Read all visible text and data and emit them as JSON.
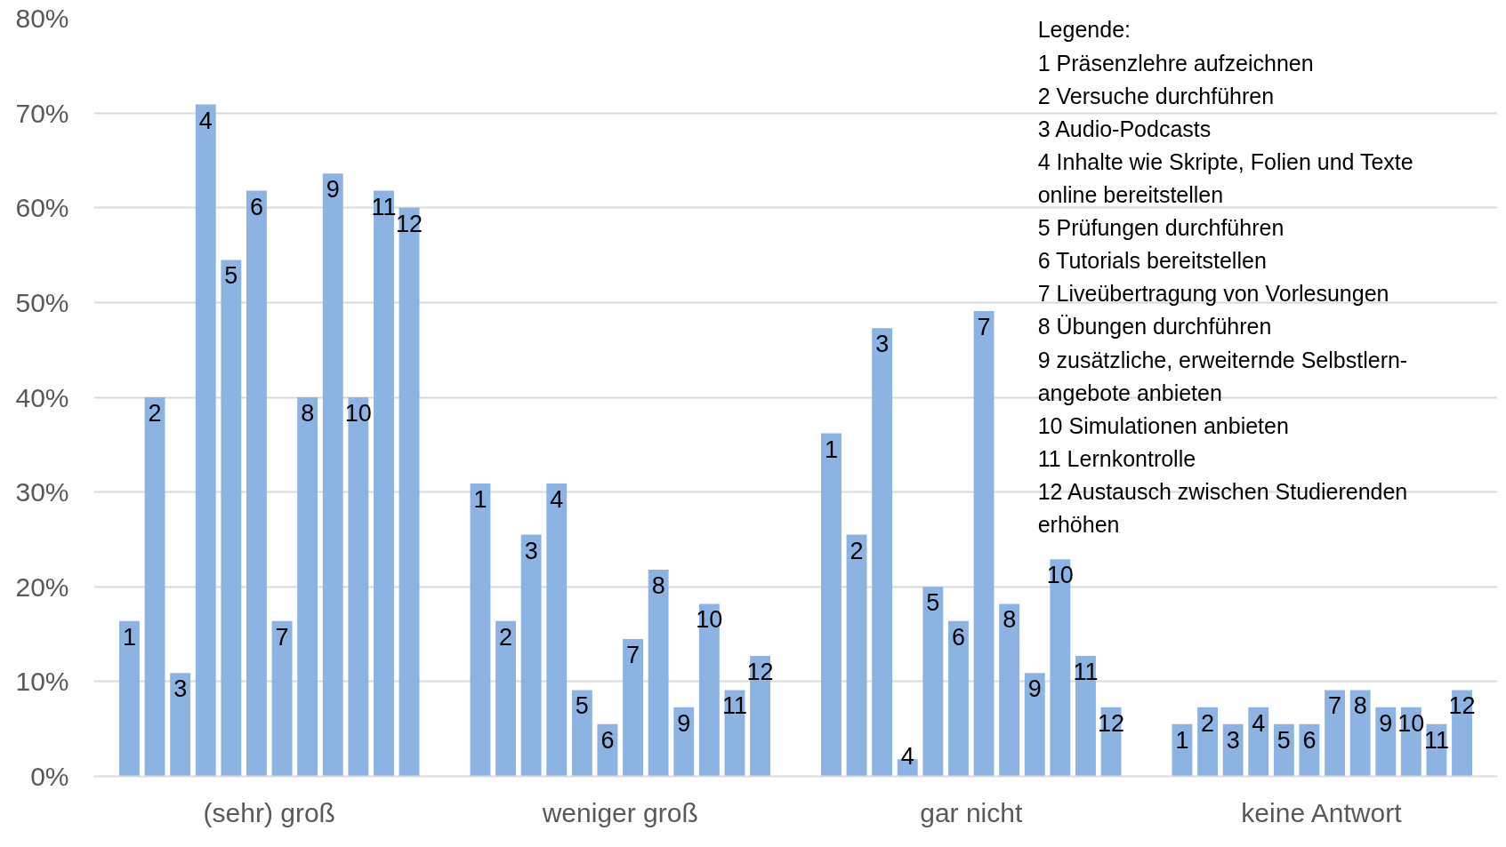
{
  "chart_data": {
    "type": "bar",
    "categories": [
      "(sehr) groß",
      "weniger groß",
      "gar nicht",
      "keine Antwort"
    ],
    "series": [
      {
        "name": "1",
        "color": "#8db3e2",
        "values": [
          16.4,
          30.9,
          36.2,
          5.5
        ]
      },
      {
        "name": "2",
        "color": "#8db3e2",
        "values": [
          40.0,
          16.4,
          25.5,
          7.3
        ]
      },
      {
        "name": "3",
        "color": "#8db3e2",
        "values": [
          10.9,
          25.5,
          47.3,
          5.5
        ]
      },
      {
        "name": "4",
        "color": "#8db3e2",
        "values": [
          70.9,
          30.9,
          1.8,
          7.3
        ]
      },
      {
        "name": "5",
        "color": "#8db3e2",
        "values": [
          54.5,
          9.1,
          20.0,
          5.5
        ]
      },
      {
        "name": "6",
        "color": "#8db3e2",
        "values": [
          61.8,
          5.5,
          16.4,
          5.5
        ]
      },
      {
        "name": "7",
        "color": "#8db3e2",
        "values": [
          16.4,
          14.5,
          49.1,
          9.1
        ]
      },
      {
        "name": "8",
        "color": "#8db3e2",
        "values": [
          40.0,
          21.8,
          18.2,
          9.1
        ]
      },
      {
        "name": "9",
        "color": "#8db3e2",
        "values": [
          63.6,
          7.3,
          10.9,
          7.3
        ]
      },
      {
        "name": "10",
        "color": "#8db3e2",
        "values": [
          40.0,
          18.2,
          22.9,
          7.3
        ]
      },
      {
        "name": "11",
        "color": "#8db3e2",
        "values": [
          61.8,
          9.1,
          12.7,
          5.5
        ]
      },
      {
        "name": "12",
        "color": "#8db3e2",
        "values": [
          60.0,
          12.7,
          7.3,
          9.1
        ]
      }
    ],
    "ylim": [
      0,
      80
    ],
    "yticks": [
      {
        "value": 0,
        "label": "0%"
      },
      {
        "value": 10,
        "label": "10%"
      },
      {
        "value": 20,
        "label": "20%"
      },
      {
        "value": 30,
        "label": "30%"
      },
      {
        "value": 40,
        "label": "40%"
      },
      {
        "value": 50,
        "label": "50%"
      },
      {
        "value": 60,
        "label": "60%"
      },
      {
        "value": 70,
        "label": "70%"
      },
      {
        "value": 80,
        "label": "80%"
      }
    ],
    "grid": "y",
    "annotations": [
      "Legende:",
      "1  Präsenzlehre aufzeichnen",
      "2  Versuche durchführen",
      "3  Audio-Podcasts",
      "4  Inhalte wie Skripte, Folien und Texte\n    online bereitstellen",
      "5  Prüfungen durchführen",
      "6  Tutorials bereitstellen",
      "7  Liveübertragung von Vorlesungen",
      "8  Übungen durchführen",
      "9  zusätzliche, erweiternde Selbstlern-\n   angebote anbieten",
      "10  Simulationen anbieten",
      "11   Lernkontrolle",
      "12   Austausch zwischen Studierenden\n       erhöhen"
    ]
  }
}
